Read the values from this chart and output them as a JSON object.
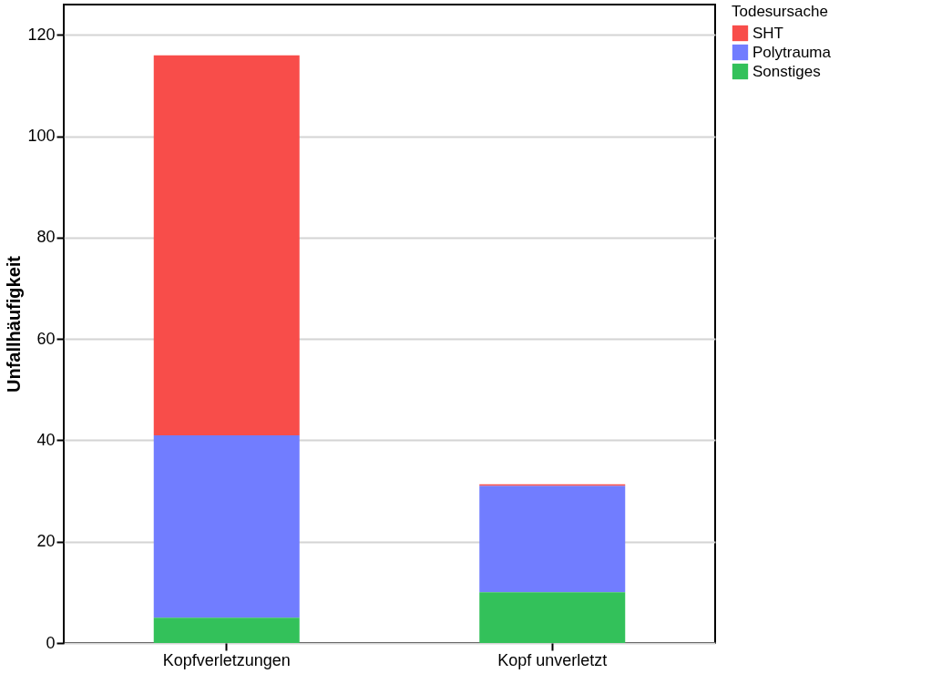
{
  "chart_data": {
    "type": "bar",
    "stacked": true,
    "ylabel": "Unfallhäufigkeit",
    "legend_title": "Todesursache",
    "legend": "top right",
    "categories": [
      "Kopfverletzungen",
      "Kopf unverletzt"
    ],
    "series": [
      {
        "name": "SHT",
        "color": "#f84d4a",
        "values": [
          75,
          0.3
        ]
      },
      {
        "name": "Polytrauma",
        "color": "#717dff",
        "values": [
          36,
          21
        ]
      },
      {
        "name": "Sonstiges",
        "color": "#33c15a",
        "values": [
          5,
          10
        ]
      }
    ],
    "ylim": [
      0,
      126
    ],
    "yticks": [
      0,
      20,
      40,
      60,
      80,
      100,
      120
    ],
    "grid": "y"
  }
}
